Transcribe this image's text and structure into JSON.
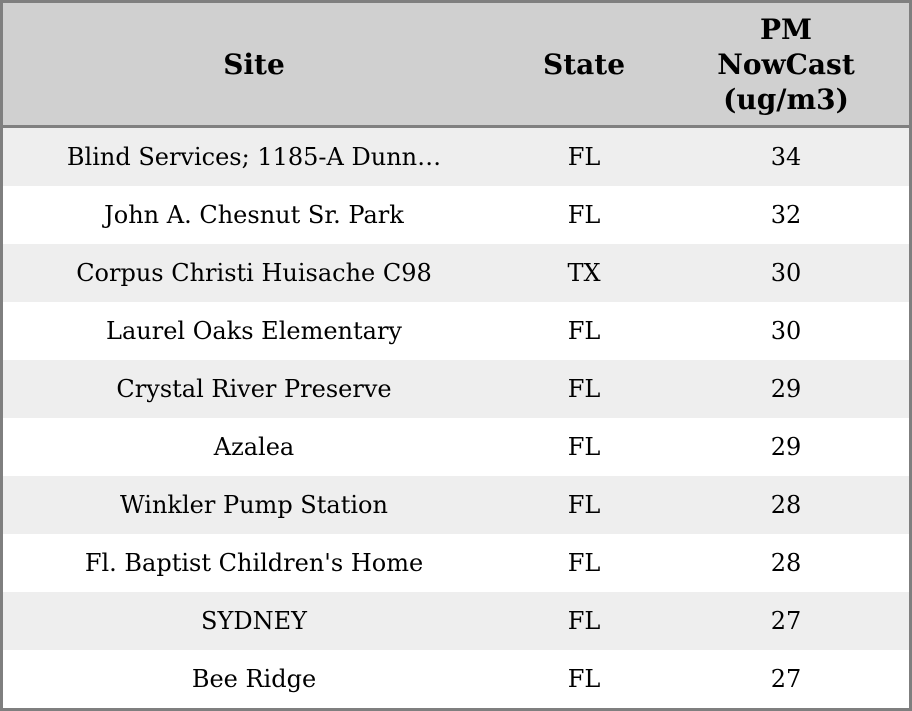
{
  "colors": {
    "header_bg": "#d0d0d0",
    "row_shaded_bg": "#eeeeee",
    "row_plain_bg": "#ffffff",
    "outer_border": "#7f7f7f",
    "header_divider": "#808080",
    "text": "#000000"
  },
  "table": {
    "header": {
      "site": "Site",
      "state": "State",
      "pm": "PM NowCast (ug/m3)"
    },
    "rows": [
      {
        "site": "Blind Services; 1185-A Dunn…",
        "state": "FL",
        "pm": "34"
      },
      {
        "site": "John A. Chesnut Sr. Park",
        "state": "FL",
        "pm": "32"
      },
      {
        "site": "Corpus Christi Huisache C98",
        "state": "TX",
        "pm": "30"
      },
      {
        "site": "Laurel Oaks Elementary",
        "state": "FL",
        "pm": "30"
      },
      {
        "site": "Crystal River Preserve",
        "state": "FL",
        "pm": "29"
      },
      {
        "site": "Azalea",
        "state": "FL",
        "pm": "29"
      },
      {
        "site": "Winkler Pump Station",
        "state": "FL",
        "pm": "28"
      },
      {
        "site": "Fl. Baptist Children's Home",
        "state": "FL",
        "pm": "28"
      },
      {
        "site": "SYDNEY",
        "state": "FL",
        "pm": "27"
      },
      {
        "site": "Bee Ridge",
        "state": "FL",
        "pm": "27"
      }
    ]
  },
  "chart_data": {
    "type": "table",
    "title": "",
    "columns": [
      "Site",
      "State",
      "PM NowCast (ug/m3)"
    ],
    "rows": [
      [
        "Blind Services; 1185-A Dunn…",
        "FL",
        34
      ],
      [
        "John A. Chesnut Sr. Park",
        "FL",
        32
      ],
      [
        "Corpus Christi Huisache C98",
        "TX",
        30
      ],
      [
        "Laurel Oaks Elementary",
        "FL",
        30
      ],
      [
        "Crystal River Preserve",
        "FL",
        29
      ],
      [
        "Azalea",
        "FL",
        29
      ],
      [
        "Winkler Pump Station",
        "FL",
        28
      ],
      [
        "Fl. Baptist Children's Home",
        "FL",
        28
      ],
      [
        "SYDNEY",
        "FL",
        27
      ],
      [
        "Bee Ridge",
        "FL",
        27
      ]
    ]
  }
}
